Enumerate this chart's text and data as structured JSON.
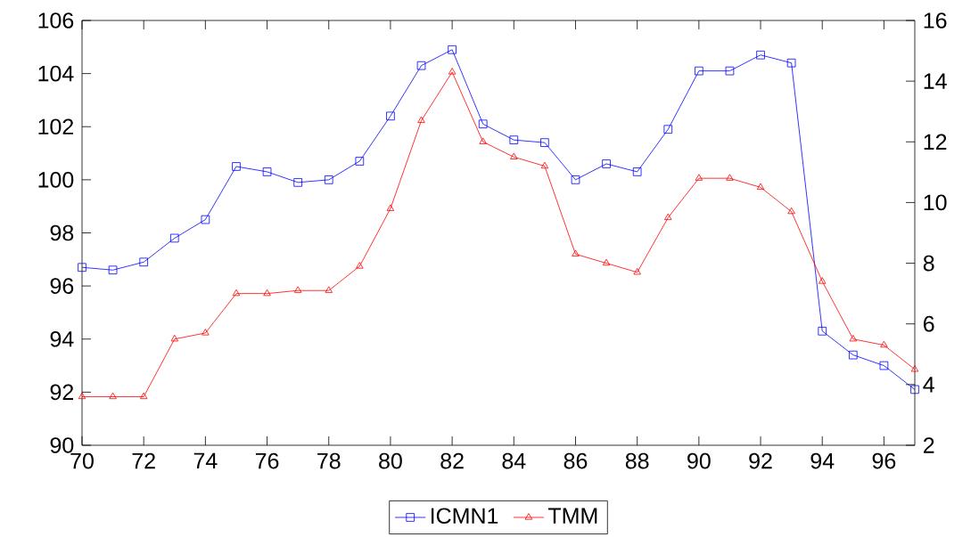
{
  "chart_data": {
    "type": "line",
    "x": [
      70,
      71,
      72,
      73,
      74,
      75,
      76,
      77,
      78,
      79,
      80,
      81,
      82,
      83,
      84,
      85,
      86,
      87,
      88,
      89,
      90,
      91,
      92,
      93,
      94,
      95,
      96,
      97
    ],
    "series": [
      {
        "name": "ICMN1",
        "color": "#0000ff",
        "marker": "square",
        "values": [
          96.7,
          96.6,
          96.9,
          97.8,
          98.5,
          100.5,
          100.3,
          99.9,
          100.0,
          100.7,
          102.4,
          104.3,
          104.9,
          102.1,
          101.5,
          101.4,
          100.0,
          100.6,
          100.3,
          101.9,
          104.1,
          104.1,
          104.7,
          104.4,
          94.3,
          93.4,
          93.0,
          92.1
        ]
      },
      {
        "name": "TMM",
        "color": "#ff0000",
        "marker": "triangle",
        "axis": "y2",
        "values": [
          3.6,
          3.6,
          3.6,
          5.5,
          5.7,
          7.0,
          7.0,
          7.1,
          7.1,
          7.9,
          9.8,
          12.7,
          14.3,
          12.0,
          11.5,
          11.2,
          8.3,
          8.0,
          7.7,
          9.5,
          10.8,
          10.8,
          10.5,
          9.7,
          7.4,
          5.5,
          5.3,
          4.5
        ]
      }
    ],
    "xlim": [
      70,
      97
    ],
    "xticks": [
      70,
      72,
      74,
      76,
      78,
      80,
      82,
      84,
      86,
      88,
      90,
      92,
      94,
      96
    ],
    "ylim": [
      90,
      106
    ],
    "yticks": [
      90,
      92,
      94,
      96,
      98,
      100,
      102,
      104,
      106
    ],
    "y2lim": [
      2,
      16
    ],
    "y2ticks": [
      2,
      4,
      6,
      8,
      10,
      12,
      14,
      16
    ],
    "grid": false,
    "legend": "bottom"
  }
}
